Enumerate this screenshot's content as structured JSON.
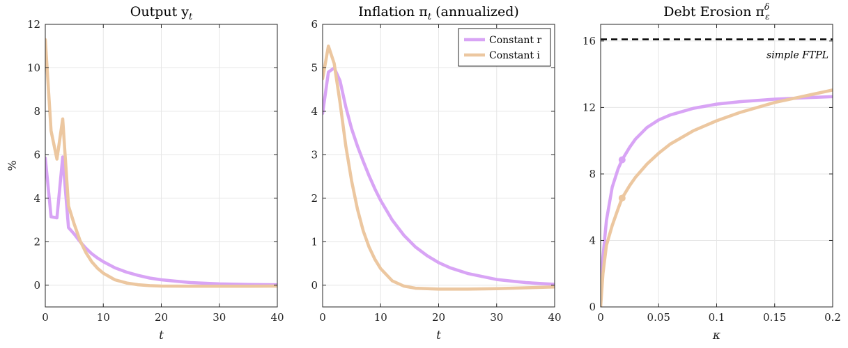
{
  "chart_data": [
    {
      "type": "line",
      "title": "Output y",
      "title_subscript": "t",
      "xlabel": "t",
      "ylabel": "%",
      "xlim": [
        0,
        40
      ],
      "ylim": [
        -1,
        12
      ],
      "xticks": [
        0,
        10,
        20,
        30,
        40
      ],
      "yticks": [
        0,
        2,
        4,
        6,
        8,
        10,
        12
      ],
      "grid": true,
      "series": [
        {
          "name": "Constant r",
          "color": "#d8a4f5",
          "points": [
            [
              0,
              5.85
            ],
            [
              1,
              3.15
            ],
            [
              2,
              3.1
            ],
            [
              3,
              5.9
            ],
            [
              4,
              2.65
            ],
            [
              5,
              2.35
            ],
            [
              6,
              2.0
            ],
            [
              7,
              1.7
            ],
            [
              8,
              1.45
            ],
            [
              9,
              1.25
            ],
            [
              10,
              1.08
            ],
            [
              12,
              0.8
            ],
            [
              14,
              0.6
            ],
            [
              16,
              0.45
            ],
            [
              18,
              0.33
            ],
            [
              20,
              0.25
            ],
            [
              25,
              0.12
            ],
            [
              30,
              0.06
            ],
            [
              35,
              0.03
            ],
            [
              40,
              0.02
            ]
          ]
        },
        {
          "name": "Constant i",
          "color": "#ecc7a0",
          "points": [
            [
              0,
              11.3
            ],
            [
              1,
              7.1
            ],
            [
              2,
              5.8
            ],
            [
              3,
              7.65
            ],
            [
              4,
              3.65
            ],
            [
              5,
              2.8
            ],
            [
              6,
              2.05
            ],
            [
              7,
              1.5
            ],
            [
              8,
              1.08
            ],
            [
              9,
              0.78
            ],
            [
              10,
              0.55
            ],
            [
              12,
              0.25
            ],
            [
              14,
              0.1
            ],
            [
              16,
              0.02
            ],
            [
              18,
              -0.02
            ],
            [
              20,
              -0.04
            ],
            [
              25,
              -0.05
            ],
            [
              30,
              -0.05
            ],
            [
              35,
              -0.05
            ],
            [
              40,
              -0.04
            ]
          ]
        }
      ]
    },
    {
      "type": "line",
      "title": "Inflation π",
      "title_subscript": "t",
      "title_suffix": " (annualized)",
      "xlabel": "t",
      "xlim": [
        0,
        40
      ],
      "ylim": [
        -0.5,
        6
      ],
      "xticks": [
        0,
        10,
        20,
        30,
        40
      ],
      "yticks": [
        0,
        1,
        2,
        3,
        4,
        5,
        6
      ],
      "grid": true,
      "legend": "top-right",
      "series": [
        {
          "name": "Constant r",
          "color": "#d8a4f5",
          "points": [
            [
              0,
              3.95
            ],
            [
              1,
              4.9
            ],
            [
              2,
              5.0
            ],
            [
              3,
              4.7
            ],
            [
              4,
              4.1
            ],
            [
              5,
              3.6
            ],
            [
              6,
              3.2
            ],
            [
              7,
              2.85
            ],
            [
              8,
              2.52
            ],
            [
              9,
              2.22
            ],
            [
              10,
              1.95
            ],
            [
              12,
              1.5
            ],
            [
              14,
              1.15
            ],
            [
              16,
              0.88
            ],
            [
              18,
              0.68
            ],
            [
              20,
              0.52
            ],
            [
              22,
              0.4
            ],
            [
              25,
              0.27
            ],
            [
              30,
              0.13
            ],
            [
              35,
              0.06
            ],
            [
              40,
              0.02
            ]
          ]
        },
        {
          "name": "Constant i",
          "color": "#ecc7a0",
          "points": [
            [
              0,
              4.75
            ],
            [
              1,
              5.5
            ],
            [
              2,
              5.1
            ],
            [
              3,
              4.2
            ],
            [
              4,
              3.2
            ],
            [
              5,
              2.4
            ],
            [
              6,
              1.75
            ],
            [
              7,
              1.25
            ],
            [
              8,
              0.88
            ],
            [
              9,
              0.6
            ],
            [
              10,
              0.38
            ],
            [
              12,
              0.1
            ],
            [
              14,
              -0.02
            ],
            [
              16,
              -0.07
            ],
            [
              18,
              -0.08
            ],
            [
              20,
              -0.09
            ],
            [
              25,
              -0.09
            ],
            [
              30,
              -0.08
            ],
            [
              35,
              -0.06
            ],
            [
              40,
              -0.04
            ]
          ]
        }
      ]
    },
    {
      "type": "line",
      "title": "Debt Erosion π",
      "title_subscript": "ε",
      "title_superscript": "δ",
      "xlabel": "κ",
      "xlim": [
        0,
        0.2
      ],
      "ylim": [
        0,
        17
      ],
      "xticks": [
        0,
        0.05,
        0.1,
        0.15,
        0.2
      ],
      "xtick_labels": [
        "0",
        "0.05",
        "0.1",
        "0.15",
        "0.2"
      ],
      "yticks": [
        0,
        4,
        8,
        12,
        16
      ],
      "grid": true,
      "reference_line": {
        "y": 16.1,
        "label": "simple FTPL",
        "style": "dashed"
      },
      "series": [
        {
          "color": "#d8a4f5",
          "points": [
            [
              0,
              1.2
            ],
            [
              0.002,
              3.0
            ],
            [
              0.005,
              5.2
            ],
            [
              0.01,
              7.2
            ],
            [
              0.015,
              8.3
            ],
            [
              0.0185,
              8.85
            ],
            [
              0.025,
              9.6
            ],
            [
              0.03,
              10.1
            ],
            [
              0.04,
              10.8
            ],
            [
              0.05,
              11.25
            ],
            [
              0.06,
              11.55
            ],
            [
              0.08,
              11.95
            ],
            [
              0.1,
              12.2
            ],
            [
              0.12,
              12.35
            ],
            [
              0.15,
              12.5
            ],
            [
              0.18,
              12.6
            ],
            [
              0.2,
              12.65
            ]
          ],
          "marker": [
            0.0185,
            8.85
          ]
        },
        {
          "color": "#ecc7a0",
          "points": [
            [
              0,
              0
            ],
            [
              0.002,
              2.0
            ],
            [
              0.005,
              3.7
            ],
            [
              0.01,
              4.9
            ],
            [
              0.015,
              5.9
            ],
            [
              0.0185,
              6.55
            ],
            [
              0.025,
              7.3
            ],
            [
              0.03,
              7.8
            ],
            [
              0.04,
              8.6
            ],
            [
              0.05,
              9.25
            ],
            [
              0.06,
              9.8
            ],
            [
              0.08,
              10.6
            ],
            [
              0.1,
              11.2
            ],
            [
              0.12,
              11.7
            ],
            [
              0.15,
              12.3
            ],
            [
              0.18,
              12.75
            ],
            [
              0.2,
              13.05
            ]
          ],
          "marker": [
            0.0185,
            6.55
          ]
        }
      ]
    }
  ]
}
